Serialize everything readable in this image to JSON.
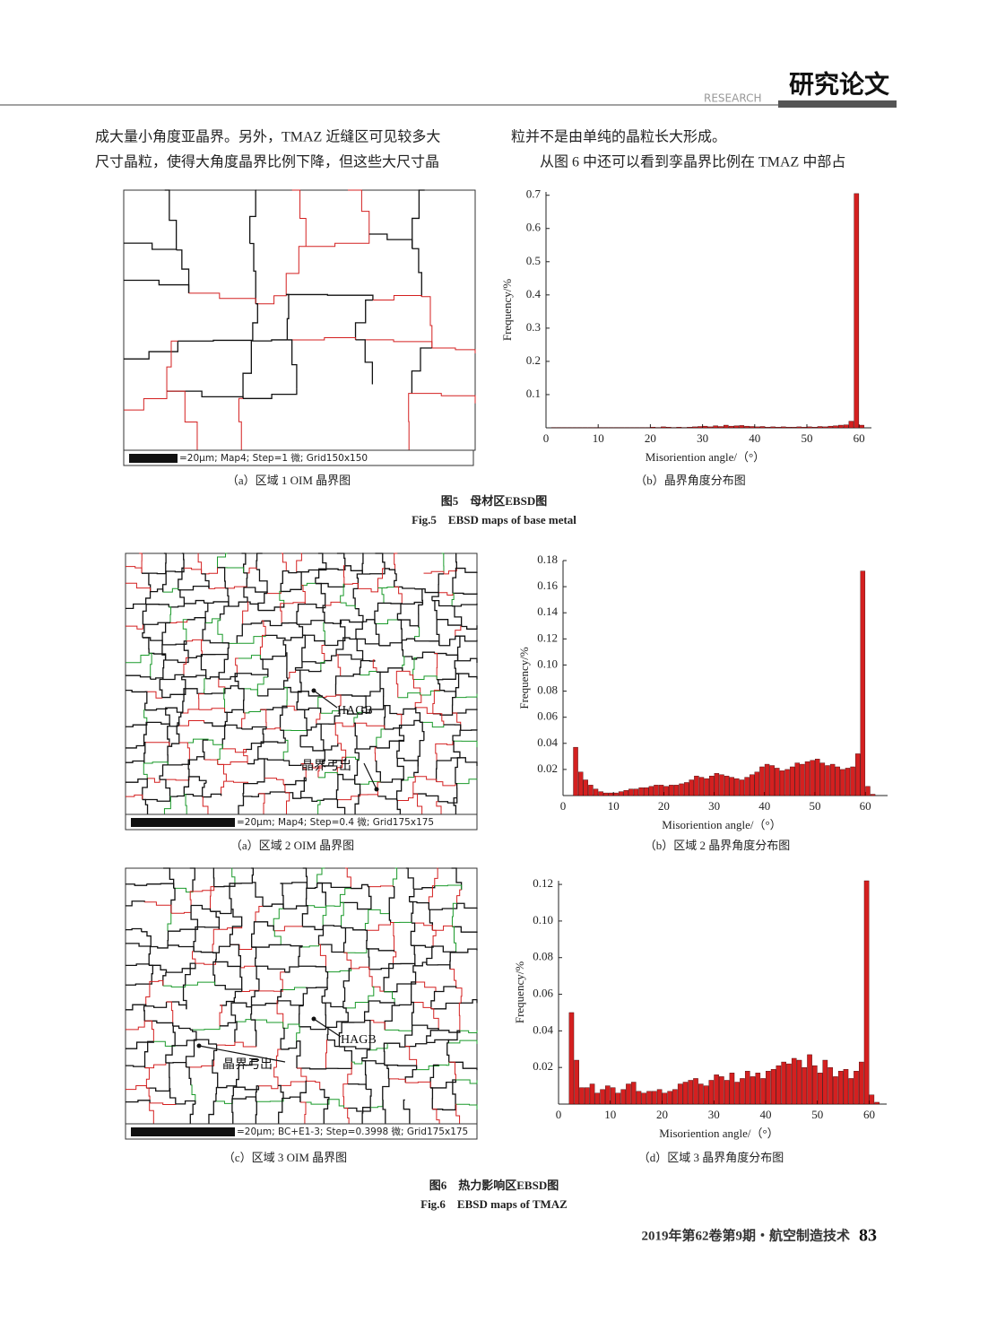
{
  "header": {
    "section_en": "RESEARCH",
    "section_cn": "研究论文"
  },
  "body": {
    "left": [
      "成大量小角度亚晶界。另外，TMAZ 近缝区可见较多大",
      "尺寸晶粒，使得大角度晶界比例下降，但这些大尺寸晶"
    ],
    "right": [
      "粒并不是由单纯的晶粒长大形成。",
      "从图 6 中还可以看到孪晶界比例在 TMAZ 中部占"
    ]
  },
  "figure5": {
    "sub": [
      "（a）区域 1 OIM 晶界图",
      "（b）晶界角度分布图"
    ],
    "title_cn": "图5　母材区EBSD图",
    "title_en": "Fig.5　EBSD maps of base metal",
    "scale_bar": "=20μm; Map4; Step=1 微; Grid150x150"
  },
  "figure6": {
    "sub": [
      "（a）区域 2 OIM 晶界图",
      "（b）区域 2 晶界角度分布图",
      "（c）区域 3 OIM 晶界图",
      "（d）区域 3 晶界角度分布图"
    ],
    "title_cn": "图6　热力影响区EBSD图",
    "title_en": "Fig.6　EBSD maps of TMAZ",
    "scale_bars": [
      "=20μm; Map4; Step=0.4 微; Grid175x175",
      "=20μm; BC+E1-3; Step=0.3998 微; Grid175x175"
    ],
    "annotations": [
      "HAGB",
      "晶界弓出",
      "HAGB",
      "晶界弓出"
    ]
  },
  "footer": {
    "journal": "2019年第62卷第9期・航空制造技术",
    "page": "83"
  },
  "chart_data": [
    {
      "type": "histogram",
      "xlabel": "Misoriention angle/（°）",
      "ylabel": "Frequency/%",
      "color": "#d42020",
      "bins": [
        1,
        2,
        3,
        4,
        5,
        6,
        7,
        8,
        9,
        10,
        11,
        12,
        13,
        14,
        15,
        16,
        17,
        18,
        19,
        20,
        21,
        22,
        23,
        24,
        25,
        26,
        27,
        28,
        29,
        30,
        31,
        32,
        33,
        34,
        35,
        36,
        37,
        38,
        39,
        40,
        41,
        42,
        43,
        44,
        45,
        46,
        47,
        48,
        49,
        50,
        51,
        52,
        53,
        54,
        55,
        56,
        57,
        58,
        59,
        60,
        61
      ],
      "counts": [
        0.001,
        0.001,
        0.001,
        0.001,
        0.001,
        0.001,
        0.001,
        0.001,
        0.001,
        0.001,
        0.001,
        0.001,
        0.001,
        0.001,
        0.001,
        0.001,
        0.001,
        0.001,
        0.001,
        0.002,
        0.001,
        0.003,
        0.002,
        0.001,
        0.002,
        0.001,
        0.002,
        0.003,
        0.004,
        0.005,
        0.003,
        0.006,
        0.004,
        0.008,
        0.005,
        0.006,
        0.007,
        0.005,
        0.004,
        0.003,
        0.004,
        0.002,
        0.003,
        0.002,
        0.003,
        0.002,
        0.002,
        0.003,
        0.002,
        0.003,
        0.002,
        0.004,
        0.003,
        0.005,
        0.006,
        0.008,
        0.009,
        0.02,
        0.705,
        0.008
      ],
      "xlim": [
        0,
        61
      ],
      "ylim": [
        0,
        0.71
      ],
      "xticks": [
        0,
        10,
        20,
        30,
        40,
        50,
        60
      ],
      "yticks": [
        0.1,
        0.2,
        0.3,
        0.4,
        0.5,
        0.6,
        0.7
      ]
    },
    {
      "type": "histogram",
      "xlabel": "Misoriention angle/（°）",
      "ylabel": "Frequency/%",
      "color": "#d42020",
      "bins": [
        2,
        3,
        4,
        5,
        6,
        7,
        8,
        9,
        10,
        11,
        12,
        13,
        14,
        15,
        16,
        17,
        18,
        19,
        20,
        21,
        22,
        23,
        24,
        25,
        26,
        27,
        28,
        29,
        30,
        31,
        32,
        33,
        34,
        35,
        36,
        37,
        38,
        39,
        40,
        41,
        42,
        43,
        44,
        45,
        46,
        47,
        48,
        49,
        50,
        51,
        52,
        53,
        54,
        55,
        56,
        57,
        58,
        59,
        60,
        61,
        62
      ],
      "counts": [
        0.037,
        0.018,
        0.012,
        0.008,
        0.005,
        0.003,
        0.002,
        0.002,
        0.002,
        0.003,
        0.004,
        0.005,
        0.005,
        0.006,
        0.006,
        0.007,
        0.008,
        0.008,
        0.007,
        0.008,
        0.008,
        0.009,
        0.01,
        0.012,
        0.015,
        0.014,
        0.013,
        0.015,
        0.017,
        0.016,
        0.015,
        0.014,
        0.013,
        0.012,
        0.014,
        0.016,
        0.018,
        0.022,
        0.024,
        0.023,
        0.021,
        0.019,
        0.02,
        0.022,
        0.025,
        0.024,
        0.026,
        0.027,
        0.028,
        0.025,
        0.023,
        0.024,
        0.022,
        0.02,
        0.021,
        0.022,
        0.032,
        0.172,
        0.007,
        0.001
      ],
      "xlim": [
        0,
        63
      ],
      "ylim": [
        0,
        0.18
      ],
      "xticks": [
        0,
        10,
        20,
        30,
        40,
        50,
        60
      ],
      "yticks": [
        0.02,
        0.04,
        0.06,
        0.08,
        {
          "value": 0.1,
          "label": "0.10"
        },
        0.12,
        0.14,
        0.16,
        0.18
      ]
    },
    {
      "type": "histogram",
      "xlabel": "Misoriention angle/（°）",
      "ylabel": "Frequency/%",
      "color": "#d42020",
      "bins": [
        2,
        3,
        4,
        5,
        6,
        7,
        8,
        9,
        10,
        11,
        12,
        13,
        14,
        15,
        16,
        17,
        18,
        19,
        20,
        21,
        22,
        23,
        24,
        25,
        26,
        27,
        28,
        29,
        30,
        31,
        32,
        33,
        34,
        35,
        36,
        37,
        38,
        39,
        40,
        41,
        42,
        43,
        44,
        45,
        46,
        47,
        48,
        49,
        50,
        51,
        52,
        53,
        54,
        55,
        56,
        57,
        58,
        59,
        60,
        61,
        62
      ],
      "counts": [
        0.05,
        0.024,
        0.009,
        0.009,
        0.011,
        0.006,
        0.008,
        0.01,
        0.009,
        0.006,
        0.008,
        0.011,
        0.012,
        0.007,
        0.006,
        0.007,
        0.007,
        0.008,
        0.006,
        0.007,
        0.008,
        0.011,
        0.012,
        0.013,
        0.014,
        0.011,
        0.01,
        0.013,
        0.016,
        0.015,
        0.013,
        0.017,
        0.012,
        0.014,
        0.018,
        0.015,
        0.017,
        0.014,
        0.018,
        0.019,
        0.021,
        0.023,
        0.022,
        0.025,
        0.024,
        0.02,
        0.027,
        0.021,
        0.017,
        0.024,
        0.02,
        0.015,
        0.018,
        0.019,
        0.014,
        0.018,
        0.023,
        0.122,
        0.005,
        0.001
      ],
      "xlim": [
        0,
        62
      ],
      "ylim": [
        0,
        0.122
      ],
      "xticks": [
        0,
        10,
        20,
        30,
        40,
        50,
        60
      ],
      "yticks": [
        0.02,
        0.04,
        0.06,
        0.08,
        {
          "value": 0.1,
          "label": "0.10"
        },
        0.12
      ]
    }
  ]
}
